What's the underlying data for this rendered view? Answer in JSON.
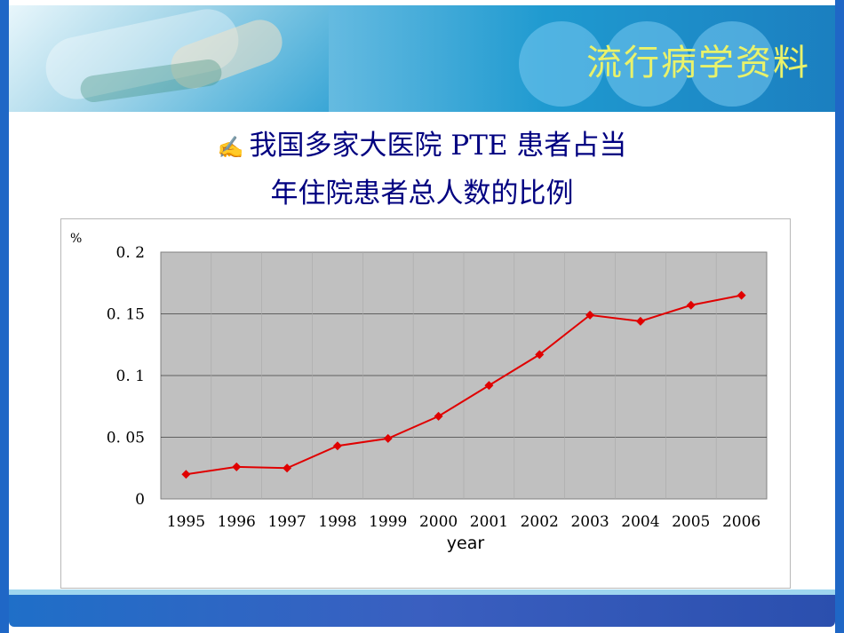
{
  "header": {
    "title": "流行病学资料"
  },
  "slide": {
    "subtitle_line1": "我国多家大医院 PTE 患者占当",
    "subtitle_line2": "年住院患者总人数的比例",
    "bullet_icon": "writing-hand-icon"
  },
  "colors": {
    "series_color": "#e00000",
    "plot_bg": "#c0c0c0",
    "title_color": "#000080",
    "header_title_color": "#e9f26a"
  },
  "chart_data": {
    "type": "line",
    "x": [
      "1995",
      "1996",
      "1997",
      "1998",
      "1999",
      "2000",
      "2001",
      "2002",
      "2003",
      "2004",
      "2005",
      "2006"
    ],
    "series": [
      {
        "values": [
          0.02,
          0.026,
          0.025,
          0.043,
          0.049,
          0.067,
          0.092,
          0.117,
          0.149,
          0.144,
          0.157,
          0.165
        ]
      }
    ],
    "ylabel": "%",
    "xlabel": "year",
    "ylim": [
      0,
      0.2
    ],
    "y_ticks": [
      "0",
      "0. 05",
      "0. 1",
      "0. 15",
      "0. 2"
    ],
    "y_tick_values": [
      0,
      0.05,
      0.1,
      0.15,
      0.2
    ],
    "grid": true,
    "legend": "none"
  }
}
